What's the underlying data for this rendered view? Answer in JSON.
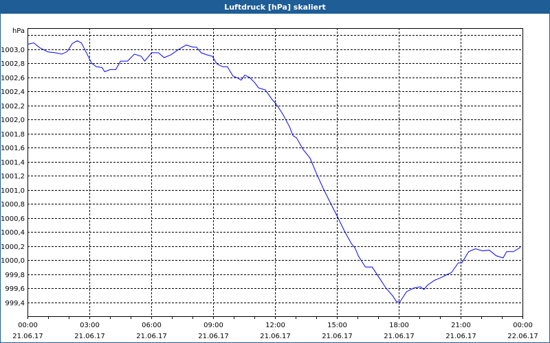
{
  "window": {
    "title": "Luftdruck [hPa] skaliert"
  },
  "chart_data": {
    "type": "line",
    "title": "Luftdruck [hPa] skaliert",
    "ylabel": "hPa",
    "xlabel": "",
    "ylim": [
      999.2,
      1003.3
    ],
    "xlim_hours": [
      0,
      24
    ],
    "grid": true,
    "line_color": "#0000ff",
    "y_ticks": [
      999.4,
      999.6,
      999.8,
      1000.0,
      1000.2,
      1000.4,
      1000.6,
      1000.8,
      1001.0,
      1001.2,
      1001.4,
      1001.6,
      1001.8,
      1002.0,
      1002.2,
      1002.4,
      1002.6,
      1002.8,
      1003.0
    ],
    "y_tick_labels": [
      "999,4",
      "999,6",
      "999,8",
      "1000,0",
      "1000,2",
      "1000,4",
      "1000,6",
      "1000,8",
      "1001,0",
      "1001,2",
      "1001,4",
      "1001,6",
      "1001,8",
      "1002,0",
      "1002,2",
      "1002,4",
      "1002,6",
      "1002,8",
      "1003,0"
    ],
    "y_grid_extra": [
      1003.2
    ],
    "x_ticks": [
      {
        "hour": 0,
        "time": "00:00",
        "date": "21.06.17"
      },
      {
        "hour": 3,
        "time": "03:00",
        "date": "21.06.17"
      },
      {
        "hour": 6,
        "time": "06:00",
        "date": "21.06.17"
      },
      {
        "hour": 9,
        "time": "09:00",
        "date": "21.06.17"
      },
      {
        "hour": 12,
        "time": "12:00",
        "date": "21.06.17"
      },
      {
        "hour": 15,
        "time": "15:00",
        "date": "21.06.17"
      },
      {
        "hour": 18,
        "time": "18:00",
        "date": "21.06.17"
      },
      {
        "hour": 21,
        "time": "21:00",
        "date": "21.06.17"
      },
      {
        "hour": 24,
        "time": "00:00",
        "date": "22.06.17"
      }
    ],
    "series": [
      {
        "name": "Luftdruck",
        "x": [
          0,
          0.3,
          0.6,
          1.0,
          1.34,
          1.67,
          1.94,
          2.17,
          2.41,
          2.61,
          2.84,
          3.11,
          3.34,
          3.61,
          3.74,
          4.01,
          4.28,
          4.51,
          4.85,
          5.18,
          5.51,
          5.68,
          6.02,
          6.35,
          6.62,
          6.95,
          7.29,
          7.69,
          8.02,
          8.19,
          8.42,
          8.69,
          8.96,
          9.19,
          9.46,
          9.69,
          9.96,
          10.19,
          10.36,
          10.53,
          10.76,
          11.03,
          11.2,
          11.53,
          11.87,
          12.03,
          12.37,
          12.7,
          12.87,
          13.04,
          13.37,
          13.7,
          14.04,
          14.37,
          14.71,
          15.04,
          15.37,
          15.71,
          15.88,
          16.04,
          16.38,
          16.71,
          17.05,
          17.38,
          17.71,
          17.88,
          18.05,
          18.38,
          18.72,
          19.05,
          19.22,
          19.39,
          19.72,
          20.05,
          20.39,
          20.55,
          20.89,
          21.06,
          21.39,
          21.72,
          22.06,
          22.39,
          22.73,
          23.06,
          23.23,
          23.56,
          23.9
        ],
        "values": [
          1003.07,
          1003.09,
          1003.02,
          1002.96,
          1002.95,
          1002.93,
          1002.97,
          1003.08,
          1003.12,
          1003.09,
          1002.96,
          1002.8,
          1002.75,
          1002.74,
          1002.68,
          1002.71,
          1002.71,
          1002.83,
          1002.83,
          1002.93,
          1002.9,
          1002.83,
          1002.95,
          1002.95,
          1002.88,
          1002.92,
          1002.99,
          1003.06,
          1003.03,
          1003.03,
          1002.95,
          1002.92,
          1002.9,
          1002.79,
          1002.75,
          1002.75,
          1002.62,
          1002.59,
          1002.56,
          1002.63,
          1002.6,
          1002.52,
          1002.45,
          1002.42,
          1002.28,
          1002.23,
          1002.08,
          1001.9,
          1001.77,
          1001.74,
          1001.57,
          1001.45,
          1001.21,
          1001.0,
          1000.8,
          1000.61,
          1000.41,
          1000.23,
          1000.17,
          1000.06,
          999.9,
          999.9,
          999.75,
          999.6,
          999.49,
          999.41,
          999.4,
          999.55,
          999.6,
          999.62,
          999.58,
          999.64,
          999.71,
          999.75,
          999.8,
          999.82,
          999.96,
          999.96,
          1000.12,
          1000.16,
          1000.13,
          1000.14,
          1000.06,
          1000.03,
          1000.12,
          1000.12,
          1000.18
        ]
      }
    ]
  }
}
